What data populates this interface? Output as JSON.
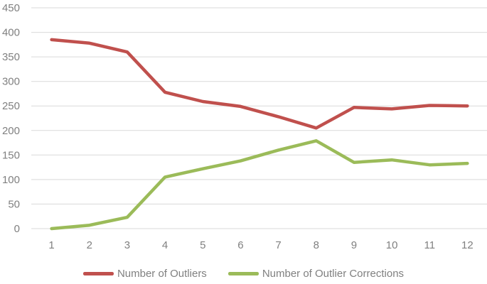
{
  "chart_data": {
    "type": "line",
    "x": [
      1,
      2,
      3,
      4,
      5,
      6,
      7,
      8,
      9,
      10,
      11,
      12
    ],
    "series": [
      {
        "name": "Number of Outliers",
        "color": "#C0504D",
        "values": [
          385,
          378,
          360,
          278,
          259,
          249,
          228,
          205,
          247,
          244,
          251,
          250
        ]
      },
      {
        "name": "Number of Outlier Corrections",
        "color": "#9BBB59",
        "values": [
          0,
          7,
          23,
          105,
          122,
          138,
          160,
          179,
          135,
          140,
          130,
          133
        ]
      }
    ],
    "title": "",
    "xlabel": "",
    "ylabel": "",
    "ylim": [
      0,
      450
    ],
    "yticks": [
      0,
      50,
      100,
      150,
      200,
      250,
      300,
      350,
      400,
      450
    ],
    "grid": "horizontal",
    "legend_position": "bottom"
  },
  "colors": {
    "background": "#FFFFFF",
    "gridline": "#D9D9D9",
    "tick_text": "#808080",
    "series_outliers": "#C0504D",
    "series_corrections": "#9BBB59"
  }
}
